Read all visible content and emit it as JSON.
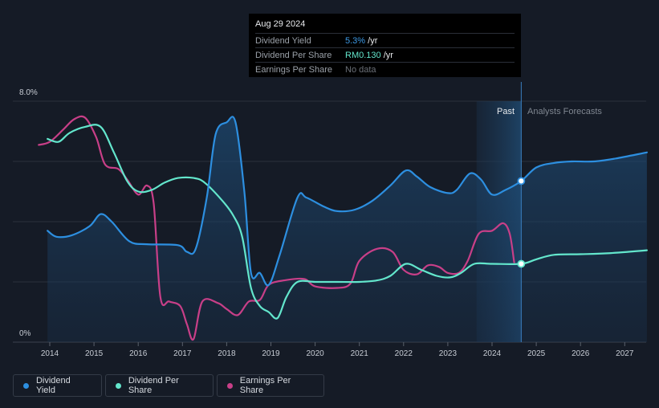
{
  "tooltip": {
    "date": "Aug 29 2024",
    "rows": [
      {
        "label": "Dividend Yield",
        "value": "5.3%",
        "suffix": " /yr"
      },
      {
        "label": "Dividend Per Share",
        "value": "RM0.130",
        "suffix": " /yr"
      },
      {
        "label": "Earnings Per Share",
        "value": "No data",
        "suffix": ""
      }
    ]
  },
  "colors": {
    "background": "#151b26",
    "dividend_yield": "#2d8fe0",
    "dividend_per_share": "#63e6cc",
    "earnings_per_share": "#c83f88",
    "past_region": "#1c3550"
  },
  "legend": [
    {
      "label": "Dividend Yield",
      "color": "#2d8fe0"
    },
    {
      "label": "Dividend Per Share",
      "color": "#63e6cc"
    },
    {
      "label": "Earnings Per Share",
      "color": "#c83f88"
    }
  ],
  "chart_data": {
    "type": "line",
    "y_labels": [
      "8.0%",
      "0%"
    ],
    "ylim": [
      0,
      8
    ],
    "xlim": [
      2013.75,
      2027.5
    ],
    "x_ticks": [
      "2014",
      "2015",
      "2016",
      "2017",
      "2018",
      "2019",
      "2020",
      "2021",
      "2022",
      "2023",
      "2024",
      "2025",
      "2026",
      "2027"
    ],
    "region_labels": {
      "past": "Past",
      "forecast": "Analysts Forecasts"
    },
    "past_region": [
      2023.65,
      2024.66
    ],
    "current_x": 2024.66,
    "grid": true,
    "series": [
      {
        "name": "Dividend Yield",
        "key": "dividend_yield",
        "filled": true,
        "points": [
          [
            2013.95,
            3.7
          ],
          [
            2014.15,
            3.5
          ],
          [
            2014.5,
            3.55
          ],
          [
            2014.9,
            3.85
          ],
          [
            2015.15,
            4.25
          ],
          [
            2015.4,
            4.0
          ],
          [
            2015.8,
            3.35
          ],
          [
            2016.2,
            3.25
          ],
          [
            2016.9,
            3.22
          ],
          [
            2017.1,
            3.0
          ],
          [
            2017.3,
            3.1
          ],
          [
            2017.55,
            4.8
          ],
          [
            2017.75,
            6.9
          ],
          [
            2018.0,
            7.3
          ],
          [
            2018.2,
            7.3
          ],
          [
            2018.4,
            5.0
          ],
          [
            2018.55,
            2.3
          ],
          [
            2018.75,
            2.3
          ],
          [
            2018.95,
            1.9
          ],
          [
            2019.2,
            2.9
          ],
          [
            2019.6,
            4.8
          ],
          [
            2019.8,
            4.8
          ],
          [
            2020.2,
            4.5
          ],
          [
            2020.5,
            4.35
          ],
          [
            2020.9,
            4.4
          ],
          [
            2021.3,
            4.7
          ],
          [
            2021.7,
            5.2
          ],
          [
            2022.05,
            5.7
          ],
          [
            2022.3,
            5.5
          ],
          [
            2022.6,
            5.15
          ],
          [
            2023.0,
            4.95
          ],
          [
            2023.2,
            5.05
          ],
          [
            2023.5,
            5.6
          ],
          [
            2023.75,
            5.4
          ],
          [
            2024.0,
            4.9
          ],
          [
            2024.3,
            5.05
          ],
          [
            2024.66,
            5.35
          ],
          [
            2025.0,
            5.8
          ],
          [
            2025.4,
            5.95
          ],
          [
            2025.8,
            6.0
          ],
          [
            2026.3,
            6.0
          ],
          [
            2026.8,
            6.1
          ],
          [
            2027.5,
            6.3
          ]
        ]
      },
      {
        "name": "Dividend Per Share",
        "key": "dividend_per_share",
        "filled": false,
        "points": [
          [
            2013.95,
            6.75
          ],
          [
            2014.2,
            6.65
          ],
          [
            2014.45,
            6.95
          ],
          [
            2014.8,
            7.15
          ],
          [
            2015.15,
            7.15
          ],
          [
            2015.45,
            6.3
          ],
          [
            2015.75,
            5.35
          ],
          [
            2016.0,
            5.0
          ],
          [
            2016.3,
            5.05
          ],
          [
            2016.6,
            5.3
          ],
          [
            2016.9,
            5.45
          ],
          [
            2017.25,
            5.45
          ],
          [
            2017.5,
            5.3
          ],
          [
            2017.9,
            4.7
          ],
          [
            2018.15,
            4.2
          ],
          [
            2018.35,
            3.5
          ],
          [
            2018.55,
            1.8
          ],
          [
            2018.75,
            1.2
          ],
          [
            2018.95,
            1.0
          ],
          [
            2019.15,
            0.8
          ],
          [
            2019.35,
            1.5
          ],
          [
            2019.6,
            2.0
          ],
          [
            2020.0,
            2.0
          ],
          [
            2020.5,
            2.0
          ],
          [
            2021.0,
            2.0
          ],
          [
            2021.4,
            2.05
          ],
          [
            2021.7,
            2.2
          ],
          [
            2022.05,
            2.6
          ],
          [
            2022.4,
            2.4
          ],
          [
            2022.75,
            2.2
          ],
          [
            2023.05,
            2.15
          ],
          [
            2023.3,
            2.3
          ],
          [
            2023.6,
            2.6
          ],
          [
            2024.0,
            2.6
          ],
          [
            2024.66,
            2.6
          ],
          [
            2025.0,
            2.75
          ],
          [
            2025.4,
            2.9
          ],
          [
            2026.0,
            2.92
          ],
          [
            2026.6,
            2.95
          ],
          [
            2027.5,
            3.05
          ]
        ]
      },
      {
        "name": "Earnings Per Share",
        "key": "earnings_per_share",
        "filled": false,
        "points": [
          [
            2013.75,
            6.55
          ],
          [
            2014.0,
            6.65
          ],
          [
            2014.3,
            7.05
          ],
          [
            2014.55,
            7.4
          ],
          [
            2014.8,
            7.45
          ],
          [
            2015.05,
            6.8
          ],
          [
            2015.25,
            5.9
          ],
          [
            2015.55,
            5.75
          ],
          [
            2015.75,
            5.4
          ],
          [
            2016.0,
            4.9
          ],
          [
            2016.2,
            5.2
          ],
          [
            2016.35,
            4.6
          ],
          [
            2016.5,
            1.5
          ],
          [
            2016.7,
            1.35
          ],
          [
            2016.95,
            1.2
          ],
          [
            2017.1,
            0.6
          ],
          [
            2017.25,
            0.1
          ],
          [
            2017.45,
            1.35
          ],
          [
            2017.8,
            1.3
          ],
          [
            2018.0,
            1.1
          ],
          [
            2018.25,
            0.9
          ],
          [
            2018.5,
            1.35
          ],
          [
            2018.75,
            1.4
          ],
          [
            2018.95,
            1.9
          ],
          [
            2019.3,
            2.05
          ],
          [
            2019.75,
            2.1
          ],
          [
            2020.0,
            1.85
          ],
          [
            2020.5,
            1.8
          ],
          [
            2020.8,
            1.95
          ],
          [
            2021.0,
            2.7
          ],
          [
            2021.4,
            3.1
          ],
          [
            2021.75,
            3.0
          ],
          [
            2022.0,
            2.4
          ],
          [
            2022.3,
            2.25
          ],
          [
            2022.55,
            2.55
          ],
          [
            2022.8,
            2.5
          ],
          [
            2023.0,
            2.3
          ],
          [
            2023.25,
            2.3
          ],
          [
            2023.45,
            2.7
          ],
          [
            2023.7,
            3.6
          ],
          [
            2024.0,
            3.7
          ],
          [
            2024.25,
            3.95
          ],
          [
            2024.4,
            3.6
          ],
          [
            2024.5,
            2.65
          ]
        ]
      }
    ]
  }
}
